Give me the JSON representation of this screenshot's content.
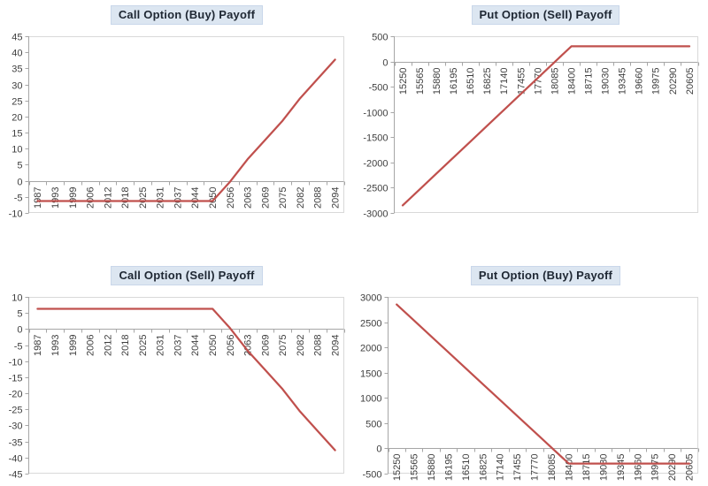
{
  "figure": {
    "layout": "2x2-grid",
    "background": "#ffffff"
  },
  "colors": {
    "series_line": "#C0504D",
    "axis_line": "#A6A6A6",
    "plot_border": "#D9D9D9",
    "tick_label": "#3F3F3F",
    "title_text": "#1E2733",
    "title_bg": "#DCE6F1"
  },
  "chart_data": [
    {
      "id": "call-buy",
      "type": "line",
      "title": "Call Option (Buy) Payoff",
      "legend_position": "none",
      "grid": false,
      "xlabel": "",
      "ylabel": "",
      "ylim": [
        -10,
        45
      ],
      "ystep": 5,
      "categories": [
        "1987",
        "1993",
        "1999",
        "2006",
        "2012",
        "2018",
        "2025",
        "2031",
        "2037",
        "2044",
        "2050",
        "2056",
        "2063",
        "2069",
        "2075",
        "2082",
        "2088",
        "2094"
      ],
      "values": [
        -6.3,
        -6.3,
        -6.3,
        -6.3,
        -6.3,
        -6.3,
        -6.3,
        -6.3,
        -6.3,
        -6.3,
        -6.3,
        -0.3,
        6.7,
        12.7,
        18.7,
        25.7,
        31.7,
        37.7
      ]
    },
    {
      "id": "put-sell",
      "type": "line",
      "title": "Put Option (Sell) Payoff",
      "legend_position": "none",
      "grid": false,
      "xlabel": "",
      "ylabel": "",
      "ylim": [
        -3000,
        500
      ],
      "ystep": 500,
      "categories": [
        "15250",
        "15565",
        "15880",
        "16195",
        "16510",
        "16825",
        "17140",
        "17455",
        "17770",
        "18085",
        "18400",
        "18715",
        "19030",
        "19345",
        "19660",
        "19975",
        "20290",
        "20605"
      ],
      "values": [
        -2850,
        -2535,
        -2220,
        -1905,
        -1590,
        -1275,
        -960,
        -645,
        -330,
        -15,
        300,
        300,
        300,
        300,
        300,
        300,
        300,
        300
      ]
    },
    {
      "id": "call-sell",
      "type": "line",
      "title": "Call Option (Sell) Payoff",
      "legend_position": "none",
      "grid": false,
      "xlabel": "",
      "ylabel": "",
      "ylim": [
        -45,
        10
      ],
      "ystep": 5,
      "categories": [
        "1987",
        "1993",
        "1999",
        "2006",
        "2012",
        "2018",
        "2025",
        "2031",
        "2037",
        "2044",
        "2050",
        "2056",
        "2063",
        "2069",
        "2075",
        "2082",
        "2088",
        "2094"
      ],
      "values": [
        6.3,
        6.3,
        6.3,
        6.3,
        6.3,
        6.3,
        6.3,
        6.3,
        6.3,
        6.3,
        6.3,
        0.3,
        -6.7,
        -12.7,
        -18.7,
        -25.7,
        -31.7,
        -37.7
      ]
    },
    {
      "id": "put-buy",
      "type": "line",
      "title": "Put Option (Buy) Payoff",
      "legend_position": "none",
      "grid": false,
      "xlabel": "",
      "ylabel": "",
      "ylim": [
        -500,
        3000
      ],
      "ystep": 500,
      "categories": [
        "15250",
        "15565",
        "15880",
        "16195",
        "16510",
        "16825",
        "17140",
        "17455",
        "17770",
        "18085",
        "18400",
        "18715",
        "19030",
        "19345",
        "19660",
        "19975",
        "20290",
        "20605"
      ],
      "values": [
        2850,
        2535,
        2220,
        1905,
        1590,
        1275,
        960,
        645,
        330,
        15,
        -300,
        -300,
        -300,
        -300,
        -300,
        -300,
        -300,
        -300
      ]
    }
  ]
}
